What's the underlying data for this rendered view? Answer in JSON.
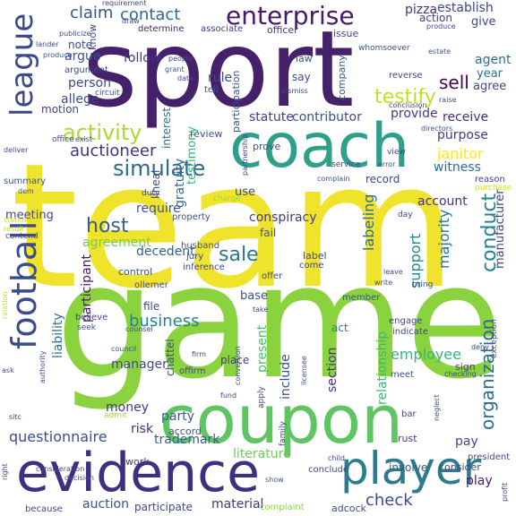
{
  "words": [
    {
      "text": "team",
      "color": "#f0e32b"
    },
    {
      "text": "game",
      "color": "#8bd23f"
    },
    {
      "text": "sport",
      "color": "#46216b"
    },
    {
      "text": "coupon",
      "color": "#5ec562"
    },
    {
      "text": "coach",
      "color": "#2e9f88"
    },
    {
      "text": "evidence",
      "color": "#3f2f7f"
    },
    {
      "text": "football",
      "color": "#3a4c8c"
    },
    {
      "text": "player",
      "color": "#2b7d8e"
    },
    {
      "text": "league",
      "color": "#3b4989"
    },
    {
      "text": "enterprise",
      "color": "#48186a"
    },
    {
      "text": "activity",
      "color": "#a8db34"
    },
    {
      "text": "simulate",
      "color": "#2f6a8e"
    },
    {
      "text": "auctioneer",
      "color": "#46337e"
    },
    {
      "text": "host",
      "color": "#355f8d"
    },
    {
      "text": "conduct",
      "color": "#25848e"
    },
    {
      "text": "organization",
      "color": "#2f6b8e"
    },
    {
      "text": "sale",
      "color": "#2a788e"
    },
    {
      "text": "testify",
      "color": "#c2df23"
    },
    {
      "text": "sell",
      "color": "#440154"
    },
    {
      "text": "claim",
      "color": "#3b528b"
    },
    {
      "text": "contact",
      "color": "#31688e"
    },
    {
      "text": "business",
      "color": "#26818e"
    },
    {
      "text": "questionnaire",
      "color": "#3d4e8a"
    },
    {
      "text": "check",
      "color": "#3e4a89"
    },
    {
      "text": "trademark",
      "color": "#355e8d"
    },
    {
      "text": "literature",
      "color": "#6ccd5a"
    },
    {
      "text": "employee",
      "color": "#32b67a"
    },
    {
      "text": "support",
      "color": "#24878e"
    },
    {
      "text": "majority",
      "color": "#2a768e"
    },
    {
      "text": "relationship",
      "color": "#3aba76"
    },
    {
      "text": "manager",
      "color": "#3e4989"
    },
    {
      "text": "party",
      "color": "#38598c"
    },
    {
      "text": "labeling",
      "color": "#2f6c8e"
    },
    {
      "text": "liability",
      "color": "#2c728e"
    },
    {
      "text": "manufacturer",
      "color": "#414487"
    },
    {
      "text": "agreement",
      "color": "#6ece58"
    },
    {
      "text": "decedent",
      "color": "#34618d"
    },
    {
      "text": "conspiracy",
      "color": "#443983"
    },
    {
      "text": "account",
      "color": "#46307e"
    },
    {
      "text": "janitor",
      "color": "#fde725"
    },
    {
      "text": "witness",
      "color": "#2d708e"
    },
    {
      "text": "receive",
      "color": "#472d7b"
    },
    {
      "text": "purpose",
      "color": "#453781"
    },
    {
      "text": "contributor",
      "color": "#3e4c8a"
    },
    {
      "text": "statute",
      "color": "#424086"
    },
    {
      "text": "participant",
      "color": "#481769"
    },
    {
      "text": "interest",
      "color": "#2c738e"
    },
    {
      "text": "gratuity",
      "color": "#31688e"
    },
    {
      "text": "testimony",
      "color": "#31b57b"
    },
    {
      "text": "present",
      "color": "#4ac16d"
    },
    {
      "text": "include",
      "color": "#3b528b"
    },
    {
      "text": "section",
      "color": "#46337e"
    },
    {
      "text": "provide",
      "color": "#443a83"
    },
    {
      "text": "person",
      "color": "#404688"
    },
    {
      "text": "allege",
      "color": "#3e4a89"
    },
    {
      "text": "argue",
      "color": "#3a538b"
    },
    {
      "text": "follow",
      "color": "#46337e"
    },
    {
      "text": "motion",
      "color": "#3f4788"
    },
    {
      "text": "meeting",
      "color": "#3e4a89"
    },
    {
      "text": "require",
      "color": "#3b528b"
    },
    {
      "text": "lineal",
      "color": "#3f4889"
    },
    {
      "text": "risk",
      "color": "#472f7d"
    },
    {
      "text": "money",
      "color": "#443983"
    },
    {
      "text": "auction",
      "color": "#3a538b"
    },
    {
      "text": "material",
      "color": "#453781"
    },
    {
      "text": "participate",
      "color": "#3e4989"
    },
    {
      "text": "adcock",
      "color": "#3e4c8a"
    },
    {
      "text": "play",
      "color": "#481b6d"
    },
    {
      "text": "pay",
      "color": "#3f4788"
    },
    {
      "text": "use",
      "color": "#3e4a89"
    },
    {
      "text": "base",
      "color": "#3b518b"
    },
    {
      "text": "place",
      "color": "#433e85"
    },
    {
      "text": "fail",
      "color": "#3b528b"
    },
    {
      "text": "record",
      "color": "#3f4788"
    },
    {
      "text": "say",
      "color": "#3e4989"
    },
    {
      "text": "act",
      "color": "#25838e"
    },
    {
      "text": "rule",
      "color": "#414487"
    },
    {
      "text": "review",
      "color": "#3a548c"
    },
    {
      "text": "prove",
      "color": "#3b528b"
    },
    {
      "text": "agent",
      "color": "#2d718e"
    },
    {
      "text": "year",
      "color": "#2a778e"
    },
    {
      "text": "agree",
      "color": "#3f4889"
    },
    {
      "text": "pizza",
      "color": "#46337e"
    },
    {
      "text": "establish",
      "color": "#404688"
    },
    {
      "text": "action",
      "color": "#424086"
    },
    {
      "text": "give",
      "color": "#3e4a89"
    },
    {
      "text": "law",
      "color": "#3b528b"
    },
    {
      "text": "company",
      "color": "#38598c"
    },
    {
      "text": "participation",
      "color": "#3a548c"
    },
    {
      "text": "issue",
      "color": "#404688"
    },
    {
      "text": "officer",
      "color": "#453781"
    },
    {
      "text": "associate",
      "color": "#433e85"
    },
    {
      "text": "determine",
      "color": "#481f70"
    },
    {
      "text": "note",
      "color": "#404688"
    },
    {
      "text": "know",
      "color": "#3e4a89"
    },
    {
      "text": "whomsoever",
      "color": "#3b528b"
    },
    {
      "text": "reverse",
      "color": "#3f4788"
    },
    {
      "text": "conclude",
      "color": "#3e4989"
    },
    {
      "text": "involve",
      "color": "#38598c"
    },
    {
      "text": "consider",
      "color": "#404688"
    },
    {
      "text": "president",
      "color": "#404688"
    },
    {
      "text": "sign",
      "color": "#453781"
    },
    {
      "text": "control",
      "color": "#3b528b"
    },
    {
      "text": "offer",
      "color": "#3e4a89"
    },
    {
      "text": "file",
      "color": "#3f4788"
    },
    {
      "text": "offirm",
      "color": "#404688"
    },
    {
      "text": "accord",
      "color": "#3b528b"
    },
    {
      "text": "work",
      "color": "#424086"
    },
    {
      "text": "because",
      "color": "#404688"
    },
    {
      "text": "complaint",
      "color": "#8bd646"
    },
    {
      "text": "label",
      "color": "#3f4788"
    },
    {
      "text": "come",
      "color": "#3e4989"
    },
    {
      "text": "member",
      "color": "#3b528b"
    },
    {
      "text": "engage",
      "color": "#404688"
    },
    {
      "text": "indicate",
      "color": "#3e4a89"
    },
    {
      "text": "meet",
      "color": "#3b528b"
    },
    {
      "text": "rust",
      "color": "#433e85"
    },
    {
      "text": "bar",
      "color": "#404688"
    },
    {
      "text": "summary",
      "color": "#3b528b"
    },
    {
      "text": "contend",
      "color": "#3e4989"
    },
    {
      "text": "result",
      "color": "#b8de29"
    },
    {
      "text": "duty",
      "color": "#3f4788"
    },
    {
      "text": "husband",
      "color": "#3b528b"
    },
    {
      "text": "jury",
      "color": "#3e4a89"
    },
    {
      "text": "inference",
      "color": "#404688"
    },
    {
      "text": "property",
      "color": "#3b528b"
    },
    {
      "text": "charge",
      "color": "#a0da39"
    },
    {
      "text": "chattel",
      "color": "#3e4a89"
    },
    {
      "text": "believe",
      "color": "#404688"
    },
    {
      "text": "seek",
      "color": "#3b528b"
    },
    {
      "text": "deliver",
      "color": "#3f4788"
    },
    {
      "text": "office",
      "color": "#3e4989"
    },
    {
      "text": "exist",
      "color": "#404688"
    },
    {
      "text": "circuit",
      "color": "#3b528b"
    },
    {
      "text": "argument",
      "color": "#3e4a89"
    },
    {
      "text": "lander",
      "color": "#404688"
    },
    {
      "text": "produce",
      "color": "#3b528b"
    },
    {
      "text": "publicize",
      "color": "#3f4788"
    },
    {
      "text": "requirement",
      "color": "#404688"
    },
    {
      "text": "dismiss",
      "color": "#3e4989"
    },
    {
      "text": "tell",
      "color": "#3b528b"
    },
    {
      "text": "conclusion",
      "color": "#404688"
    },
    {
      "text": "raise",
      "color": "#3e4a89"
    },
    {
      "text": "directors",
      "color": "#3b528b"
    },
    {
      "text": "view",
      "color": "#3f4788"
    },
    {
      "text": "reason",
      "color": "#404688"
    },
    {
      "text": "purchase",
      "color": "#d2e21b"
    },
    {
      "text": "service",
      "color": "#3e4989"
    },
    {
      "text": "complain",
      "color": "#3b528b"
    },
    {
      "text": "day",
      "color": "#404688"
    },
    {
      "text": "leave",
      "color": "#3e4a89"
    },
    {
      "text": "write",
      "color": "#3b528b"
    },
    {
      "text": "bring",
      "color": "#3f4788"
    },
    {
      "text": "take",
      "color": "#404688"
    },
    {
      "text": "family",
      "color": "#3e4989"
    },
    {
      "text": "show",
      "color": "#3b528b"
    },
    {
      "text": "child",
      "color": "#3f4788"
    },
    {
      "text": "apply",
      "color": "#3e4a89"
    },
    {
      "text": "admit",
      "color": "#9fda3a"
    },
    {
      "text": "council",
      "color": "#3b528b"
    },
    {
      "text": "counsel",
      "color": "#404688"
    },
    {
      "text": "ollemer",
      "color": "#3e4989"
    },
    {
      "text": "dem",
      "color": "#3b528b"
    },
    {
      "text": "statement",
      "color": "#d8e219"
    },
    {
      "text": "relation",
      "color": "#c5e021"
    },
    {
      "text": "authority",
      "color": "#3e4a89"
    },
    {
      "text": "exception",
      "color": "#3b528b"
    },
    {
      "text": "deny",
      "color": "#404688"
    },
    {
      "text": "people",
      "color": "#3e4989"
    },
    {
      "text": "grant",
      "color": "#3b528b"
    },
    {
      "text": "date",
      "color": "#404688"
    },
    {
      "text": "error",
      "color": "#3e4a89"
    },
    {
      "text": "estate",
      "color": "#3b528b"
    },
    {
      "text": "produce",
      "color": "#3f4788"
    },
    {
      "text": "draw",
      "color": "#404688"
    },
    {
      "text": "ask",
      "color": "#3e4989"
    },
    {
      "text": "right",
      "color": "#3b528b"
    },
    {
      "text": "sitc",
      "color": "#404688"
    },
    {
      "text": "profit",
      "color": "#3e4a89"
    },
    {
      "text": "neglect",
      "color": "#3b528b"
    },
    {
      "text": "checking",
      "color": "#404688"
    },
    {
      "text": "conversion",
      "color": "#3e4989"
    },
    {
      "text": "licensee",
      "color": "#3b528b"
    },
    {
      "text": "partnership",
      "color": "#404688"
    },
    {
      "text": "consideration",
      "color": "#3e4a89"
    },
    {
      "text": "decision",
      "color": "#3b528b"
    },
    {
      "text": "fund",
      "color": "#404688"
    },
    {
      "text": "firm",
      "color": "#3e4989"
    }
  ]
}
